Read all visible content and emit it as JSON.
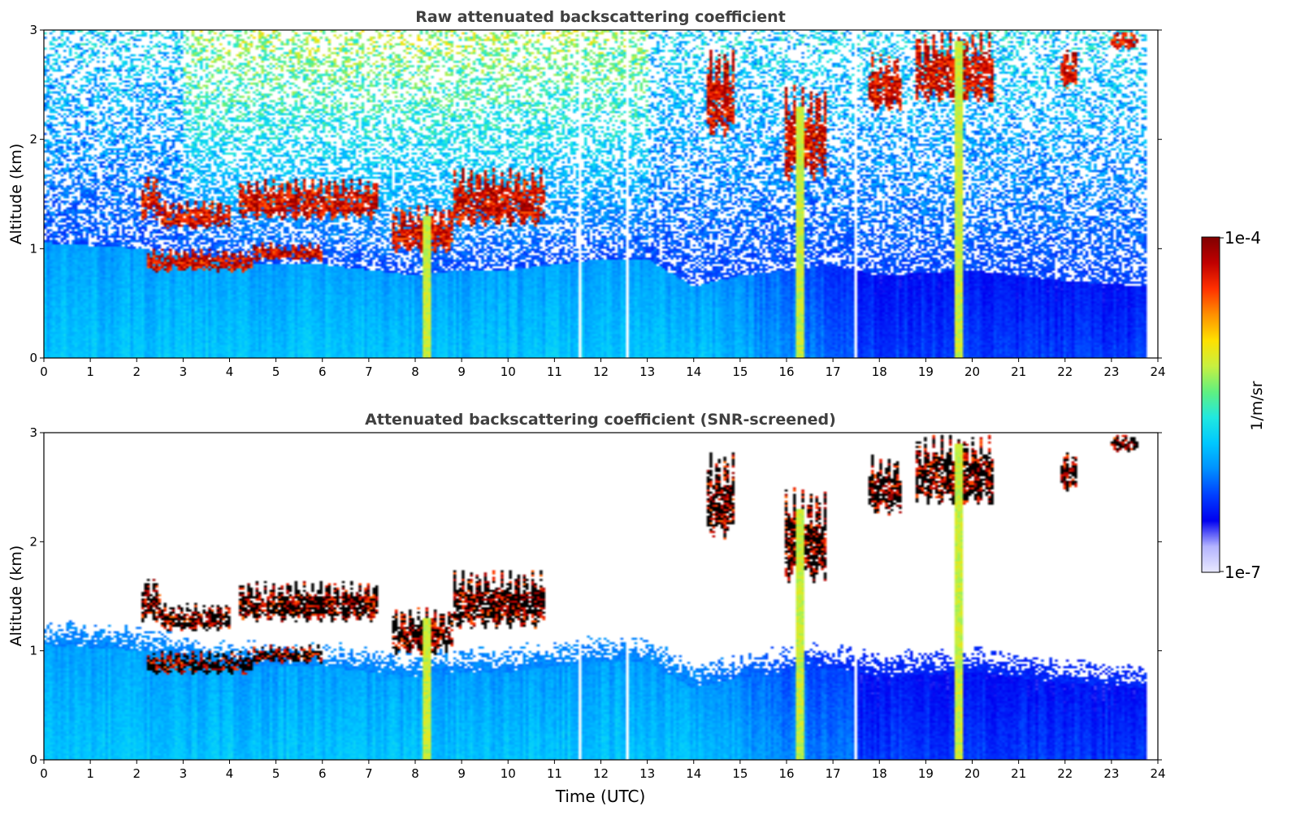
{
  "chart_data": [
    {
      "type": "heatmap",
      "title": "Raw attenuated backscattering coefficient",
      "xlabel": "",
      "ylabel": "Altitude (km)",
      "xlim": [
        0,
        24
      ],
      "ylim": [
        0,
        3
      ],
      "xticks": [
        "0",
        "1",
        "2",
        "3",
        "4",
        "5",
        "6",
        "7",
        "8",
        "9",
        "10",
        "11",
        "12",
        "13",
        "14",
        "15",
        "16",
        "17",
        "18",
        "19",
        "20",
        "21",
        "22",
        "23",
        "24"
      ],
      "yticks": [
        "0",
        "1",
        "2",
        "3"
      ],
      "screened": false
    },
    {
      "type": "heatmap",
      "title": "Attenuated backscattering coefficient (SNR-screened)",
      "xlabel": "Time (UTC)",
      "ylabel": "Altitude (km)",
      "xlim": [
        0,
        24
      ],
      "ylim": [
        0,
        3
      ],
      "xticks": [
        "0",
        "1",
        "2",
        "3",
        "4",
        "5",
        "6",
        "7",
        "8",
        "9",
        "10",
        "11",
        "12",
        "13",
        "14",
        "15",
        "16",
        "17",
        "18",
        "19",
        "20",
        "21",
        "22",
        "23",
        "24"
      ],
      "yticks": [
        "0",
        "1",
        "2",
        "3"
      ],
      "screened": true
    }
  ],
  "colorbar": {
    "label": "1/m/sr",
    "max_label": "1e-4",
    "min_label": "1e-7",
    "colormap": [
      "#e8e8ff",
      "#b4b4ff",
      "#0000f0",
      "#0040ff",
      "#0090ff",
      "#00c8ff",
      "#20e8e0",
      "#60f080",
      "#c8f040",
      "#ffe000",
      "#ff9000",
      "#ff3000",
      "#c00000",
      "#800000"
    ]
  },
  "field": {
    "data_end_hour": 23.8,
    "boundary_layer_top_km": [
      [
        0,
        1.05
      ],
      [
        2,
        1.0
      ],
      [
        4,
        0.85
      ],
      [
        6,
        0.85
      ],
      [
        7,
        0.8
      ],
      [
        8,
        0.75
      ],
      [
        9,
        0.8
      ],
      [
        10,
        0.8
      ],
      [
        11,
        0.85
      ],
      [
        12,
        0.9
      ],
      [
        13,
        0.9
      ],
      [
        14,
        0.65
      ],
      [
        15,
        0.75
      ],
      [
        16,
        0.8
      ],
      [
        17,
        0.85
      ],
      [
        18,
        0.75
      ],
      [
        20,
        0.8
      ],
      [
        22,
        0.7
      ],
      [
        23.8,
        0.65
      ]
    ],
    "cloud_segments": [
      {
        "t0": 2.05,
        "t1": 2.5,
        "base_km": 1.3,
        "top_km": 1.7
      },
      {
        "t0": 2.2,
        "t1": 4.5,
        "base_km": 0.8,
        "top_km": 1.0
      },
      {
        "t0": 2.5,
        "t1": 4.0,
        "base_km": 1.2,
        "top_km": 1.45
      },
      {
        "t0": 4.2,
        "t1": 7.2,
        "base_km": 1.3,
        "top_km": 1.65
      },
      {
        "t0": 4.5,
        "t1": 6.0,
        "base_km": 0.9,
        "top_km": 1.05
      },
      {
        "t0": 7.5,
        "t1": 8.8,
        "base_km": 1.0,
        "top_km": 1.4
      },
      {
        "t0": 8.8,
        "t1": 10.8,
        "base_km": 1.25,
        "top_km": 1.75
      },
      {
        "t0": 14.3,
        "t1": 14.9,
        "base_km": 2.1,
        "top_km": 2.85
      },
      {
        "t0": 16.0,
        "t1": 16.9,
        "base_km": 1.7,
        "top_km": 2.5
      },
      {
        "t0": 17.8,
        "t1": 18.5,
        "base_km": 2.3,
        "top_km": 2.8
      },
      {
        "t0": 18.8,
        "t1": 20.5,
        "base_km": 2.4,
        "top_km": 3.0
      },
      {
        "t0": 21.9,
        "t1": 22.3,
        "base_km": 2.5,
        "top_km": 2.85
      },
      {
        "t0": 23.0,
        "t1": 23.6,
        "base_km": 2.85,
        "top_km": 3.0
      }
    ],
    "precip_shafts": [
      {
        "t": 8.25,
        "top_km": 1.3
      },
      {
        "t": 16.3,
        "top_km": 2.3
      },
      {
        "t": 19.72,
        "top_km": 2.9
      }
    ],
    "gap_lines": [
      11.55,
      12.55,
      17.5
    ]
  }
}
